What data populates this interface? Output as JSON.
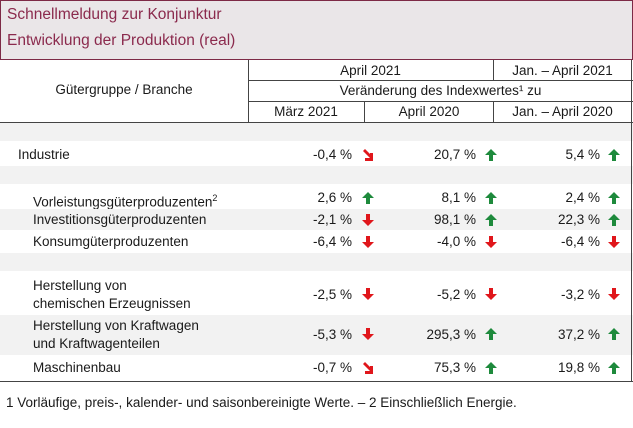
{
  "title": {
    "line1": "Schnellmeldung zur Konjunktur",
    "line2": "Entwicklung der Produktion (real)"
  },
  "header": {
    "col_label": "Gütergruppe / Branche",
    "group1": "April 2021",
    "group2": "Jan. – April 2021",
    "subtitle": "Veränderung des Indexwertes¹ zu",
    "sub1": "März 2021",
    "sub2": "April 2020",
    "sub3": "Jan. – April 2020"
  },
  "rows": [
    {
      "label": "Industrie",
      "vals": [
        "-0,4 %",
        "20,7 %",
        "5,4 %"
      ],
      "trend": [
        "down-right",
        "up",
        "up"
      ]
    },
    {
      "label": "Vorleistungsgüterproduzenten",
      "sup": "2",
      "vals": [
        "2,6 %",
        "8,1 %",
        "2,4 %"
      ],
      "trend": [
        "up",
        "up",
        "up"
      ]
    },
    {
      "label": "Investitionsgüterproduzenten",
      "vals": [
        "-2,1 %",
        "98,1 %",
        "22,3 %"
      ],
      "trend": [
        "down",
        "up",
        "up"
      ]
    },
    {
      "label": "Konsumgüterproduzenten",
      "vals": [
        "-6,4 %",
        "-4,0 %",
        "-6,4 %"
      ],
      "trend": [
        "down",
        "down",
        "down"
      ]
    },
    {
      "label": "Herstellung von",
      "label2": "chemischen Erzeugnissen",
      "vals": [
        "-2,5 %",
        "-5,2 %",
        "-3,2 %"
      ],
      "trend": [
        "down",
        "down",
        "down"
      ]
    },
    {
      "label": "Herstellung von Kraftwagen",
      "label2": "und Kraftwagenteilen",
      "vals": [
        "-5,3 %",
        "295,3 %",
        "37,2 %"
      ],
      "trend": [
        "down",
        "up",
        "up"
      ]
    },
    {
      "label": "Maschinenbau",
      "vals": [
        "-0,7 %",
        "75,3 %",
        "19,8 %"
      ],
      "trend": [
        "down-right",
        "up",
        "up"
      ]
    }
  ],
  "footnote": "1 Vorläufige, preis-, kalender- und saisonbereinigte Werte. – 2 Einschließlich Energie.",
  "colors": {
    "up": "#1e8a3c",
    "down": "#e0161b",
    "title": "#8b2a4d"
  }
}
